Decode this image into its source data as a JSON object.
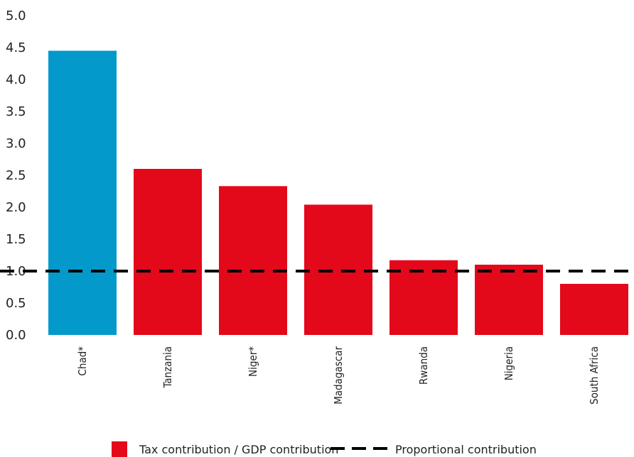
{
  "chart_data": {
    "type": "bar",
    "categories": [
      "Chad*",
      "Tanzania",
      "Niger*",
      "Madagascar",
      "Rwanda",
      "Nigeria",
      "South Africa"
    ],
    "values": [
      4.45,
      2.6,
      2.33,
      2.04,
      1.17,
      1.1,
      0.8
    ],
    "highlight_index": 0,
    "ylim": [
      0,
      5
    ],
    "yticks": [
      "0.0",
      "0.5",
      "1.0",
      "1.5",
      "2.0",
      "2.5",
      "3.0",
      "3.5",
      "4.0",
      "4.5",
      "5.0"
    ],
    "reference_line": {
      "value": 1.0,
      "style": "dashed",
      "color": "#000000"
    },
    "grid": false,
    "legend_placement": "bottom-center",
    "legend": [
      {
        "label": "Tax contribution / GDP contribution",
        "type": "bar",
        "color": "#e3081a"
      },
      {
        "label": "Proportional contribution",
        "type": "dashed-line",
        "color": "#000000"
      }
    ],
    "colors": {
      "bar": "#e3081a",
      "highlight": "#0399cb",
      "reference": "#000000"
    },
    "title": "",
    "xlabel": "",
    "ylabel": ""
  }
}
